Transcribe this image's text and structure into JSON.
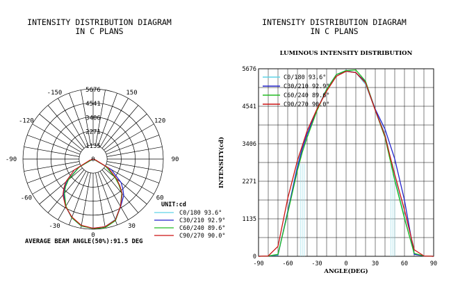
{
  "left_panel": {
    "title_line1": "INTENSITY DISTRIBUTION DIAGRAM",
    "title_line2": "IN C PLANS",
    "unit_label": "UNIT:cd",
    "beam_angle_text": "AVERAGE BEAM ANGLE(50%):91.5 DEG"
  },
  "right_panel": {
    "title_line1": "INTENSITY DISTRIBUTION DIAGRAM",
    "title_line2": "IN C PLANS"
  },
  "colors": {
    "c0_180": "#5fd4e6",
    "c30_210": "#2222cc",
    "c60_240": "#22bb22",
    "c90_270": "#cc1111",
    "grid": "#000000"
  },
  "chart_data": [
    {
      "type": "polar",
      "radial_ticks": [
        0,
        1135,
        2271,
        3406,
        4541,
        5676
      ],
      "rlim": [
        0,
        5676
      ],
      "angle_labels": [
        "-150",
        "150",
        "-120",
        "120",
        "-90",
        "90",
        "-60",
        "60",
        "-30",
        "30",
        "0"
      ],
      "grid": true,
      "legend_position": "bottom-right",
      "series": [
        {
          "name": "C0/180 93.6°",
          "color": "#5fd4e6",
          "angles": [
            -90,
            -80,
            -70,
            -60,
            -50,
            -45,
            -40,
            -30,
            -20,
            -10,
            0,
            10,
            20,
            30,
            40,
            45,
            50,
            60,
            70,
            80,
            90
          ],
          "values": [
            0,
            10,
            30,
            1350,
            2750,
            3300,
            3700,
            4430,
            5060,
            5500,
            5630,
            5560,
            5200,
            4430,
            3700,
            3050,
            2380,
            1200,
            80,
            10,
            0
          ]
        },
        {
          "name": "C30/210 92.9°",
          "color": "#2222cc",
          "angles": [
            -90,
            -80,
            -70,
            -60,
            -50,
            -45,
            -40,
            -30,
            -20,
            -10,
            0,
            10,
            20,
            30,
            40,
            45,
            50,
            60,
            70,
            80,
            90
          ],
          "values": [
            0,
            10,
            50,
            1350,
            2700,
            3250,
            3700,
            4420,
            5050,
            5500,
            5600,
            5560,
            5280,
            4450,
            3850,
            3400,
            2950,
            1700,
            60,
            10,
            0
          ]
        },
        {
          "name": "C60/240 89.6°",
          "color": "#22bb22",
          "angles": [
            -90,
            -80,
            -70,
            -60,
            -50,
            -45,
            -40,
            -30,
            -20,
            -10,
            0,
            10,
            20,
            30,
            40,
            45,
            50,
            60,
            70,
            80,
            90
          ],
          "values": [
            0,
            10,
            60,
            1300,
            2600,
            3150,
            3600,
            4400,
            5050,
            5500,
            5620,
            5640,
            5300,
            4420,
            3600,
            2950,
            2300,
            1150,
            90,
            10,
            0
          ]
        },
        {
          "name": "C90/270 90.0°",
          "color": "#cc1111",
          "angles": [
            -90,
            -80,
            -70,
            -60,
            -50,
            -45,
            -40,
            -30,
            -20,
            -10,
            0,
            10,
            20,
            30,
            40,
            45,
            50,
            60,
            70,
            80,
            90
          ],
          "values": [
            0,
            10,
            300,
            1750,
            2900,
            3350,
            3800,
            4450,
            5000,
            5450,
            5600,
            5560,
            5250,
            4420,
            3650,
            3050,
            2480,
            1400,
            200,
            10,
            0
          ]
        }
      ]
    },
    {
      "type": "line",
      "title": "LUMINOUS INTENSITY DISTRIBUTION",
      "xlabel": "ANGLE(DEG)",
      "ylabel": "INTENSITY(cd)",
      "xlim": [
        -90,
        90
      ],
      "ylim": [
        0,
        5676
      ],
      "x_ticks": [
        -90,
        -60,
        -30,
        0,
        30,
        60,
        90
      ],
      "y_ticks": [
        0,
        1135,
        2271,
        3406,
        4541,
        5676
      ],
      "grid": true,
      "legend_position": "top-left",
      "series": [
        {
          "name": "C0/180 93.6°",
          "color": "#5fd4e6",
          "x": [
            -90,
            -80,
            -70,
            -60,
            -50,
            -45,
            -40,
            -30,
            -20,
            -10,
            0,
            10,
            20,
            30,
            40,
            45,
            50,
            60,
            70,
            80,
            90
          ],
          "y": [
            0,
            10,
            30,
            1350,
            2750,
            3300,
            3700,
            4430,
            5060,
            5500,
            5630,
            5560,
            5200,
            4430,
            3700,
            3050,
            2380,
            1200,
            80,
            10,
            0
          ]
        },
        {
          "name": "C30/210 92.9°",
          "color": "#2222cc",
          "x": [
            -90,
            -80,
            -70,
            -60,
            -50,
            -45,
            -40,
            -30,
            -20,
            -10,
            0,
            10,
            20,
            30,
            40,
            45,
            50,
            60,
            70,
            80,
            90
          ],
          "y": [
            0,
            10,
            50,
            1350,
            2700,
            3250,
            3700,
            4420,
            5050,
            5500,
            5600,
            5560,
            5280,
            4450,
            3850,
            3400,
            2950,
            1700,
            60,
            10,
            0
          ]
        },
        {
          "name": "C60/240 89.6°",
          "color": "#22bb22",
          "x": [
            -90,
            -80,
            -70,
            -60,
            -50,
            -45,
            -40,
            -30,
            -20,
            -10,
            0,
            10,
            20,
            30,
            40,
            45,
            50,
            60,
            70,
            80,
            90
          ],
          "y": [
            0,
            10,
            60,
            1300,
            2600,
            3150,
            3600,
            4400,
            5050,
            5500,
            5620,
            5640,
            5300,
            4420,
            3600,
            2950,
            2300,
            1150,
            90,
            10,
            0
          ]
        },
        {
          "name": "C90/270 90.0°",
          "color": "#cc1111",
          "x": [
            -90,
            -80,
            -70,
            -60,
            -50,
            -45,
            -40,
            -30,
            -20,
            -10,
            0,
            10,
            20,
            30,
            40,
            45,
            50,
            60,
            70,
            80,
            90
          ],
          "y": [
            0,
            10,
            300,
            1750,
            2900,
            3350,
            3800,
            4450,
            5000,
            5450,
            5600,
            5560,
            5250,
            4420,
            3650,
            3050,
            2480,
            1400,
            200,
            10,
            0
          ]
        }
      ]
    }
  ]
}
